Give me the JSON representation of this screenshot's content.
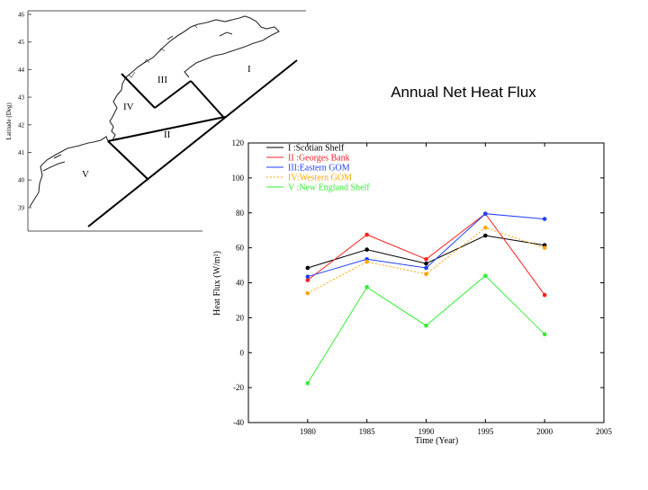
{
  "map": {
    "ylabel": "Latitude (Deg)",
    "lat_ticks": [
      "46",
      "45",
      "44",
      "43",
      "42",
      "41",
      "40",
      "39"
    ],
    "regions": [
      {
        "id": "I",
        "label": "I"
      },
      {
        "id": "II",
        "label": "II"
      },
      {
        "id": "III",
        "label": "III"
      },
      {
        "id": "IV",
        "label": "IV"
      },
      {
        "id": "V",
        "label": "V"
      }
    ],
    "colors": {
      "coast": "#2a2a2a",
      "frame": "#555555",
      "boundary": "#000000"
    }
  },
  "chart_data": {
    "type": "line",
    "title": "Annual Net Heat Flux",
    "xlabel": "Time (Year)",
    "ylabel": "Heat Flux (W/m²)",
    "x_ticks": [
      1980,
      1985,
      1990,
      1995,
      2000,
      2005
    ],
    "y_ticks": [
      -40,
      -20,
      0,
      20,
      40,
      60,
      80,
      100,
      120
    ],
    "xlim": [
      1975,
      2005
    ],
    "ylim": [
      -40,
      120
    ],
    "legend_position": "top-left",
    "series": [
      {
        "name": "I  :Scotian Shelf",
        "color": "#000000",
        "dash": "",
        "x": [
          1980,
          1985,
          1990,
          1995,
          2000
        ],
        "values": [
          48.5,
          59,
          51,
          67,
          61.5
        ]
      },
      {
        "name": "II :Georges Bank",
        "color": "#ff2020",
        "dash": "",
        "x": [
          1980,
          1985,
          1990,
          1995,
          2000
        ],
        "values": [
          41.5,
          67.5,
          53.5,
          79.5,
          33
        ]
      },
      {
        "name": "III:Eastern GOM",
        "color": "#1f3fff",
        "dash": "",
        "x": [
          1980,
          1985,
          1990,
          1995,
          2000
        ],
        "values": [
          43.5,
          53.5,
          48.5,
          79.5,
          76.5
        ]
      },
      {
        "name": "IV:Western GOM",
        "color": "#ffa500",
        "dash": "2,2",
        "x": [
          1980,
          1985,
          1990,
          1995,
          2000
        ],
        "values": [
          34,
          52,
          45,
          71.5,
          60
        ]
      },
      {
        "name": "V :New England Shelf",
        "color": "#33ee33",
        "dash": "",
        "x": [
          1980,
          1985,
          1990,
          1995,
          2000
        ],
        "values": [
          -17.5,
          37.5,
          15.5,
          44,
          10.5
        ]
      }
    ]
  }
}
